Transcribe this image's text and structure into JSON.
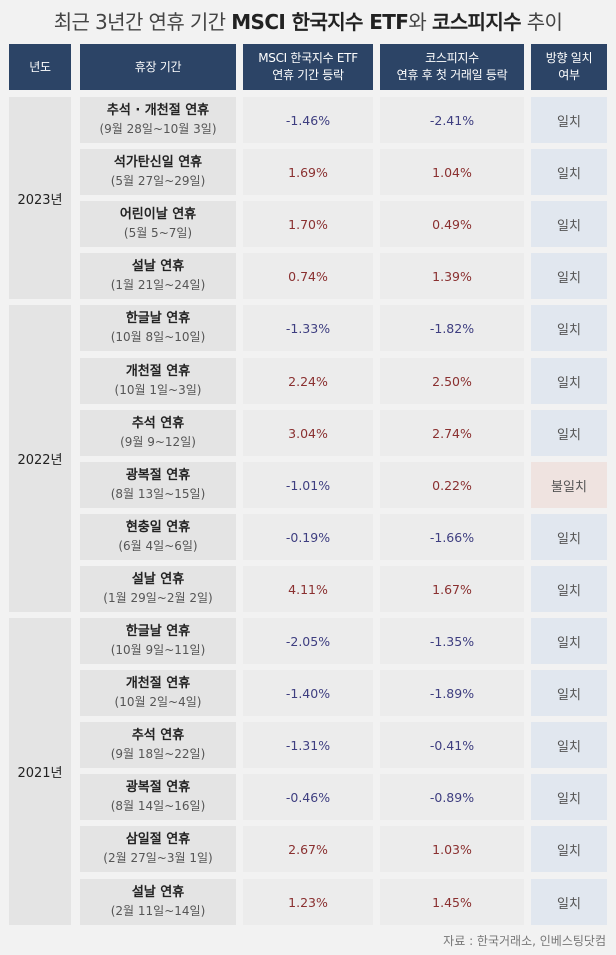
{
  "title": {
    "part1": "최근 3년간 연휴 기간 ",
    "part2": "MSCI 한국지수 ETF",
    "part3": "와 ",
    "part4": "코스피지수",
    "part5": " 추이"
  },
  "headers": {
    "year": "년도",
    "holiday": "휴장 기간",
    "msci_line1": "MSCI 한국지수 ETF",
    "msci_line2": "연휴 기간 등락",
    "kospi_line1": "코스피지수",
    "kospi_line2": "연휴 후 첫 거래일 등락",
    "match_line1": "방향 일치",
    "match_line2": "여부"
  },
  "chart_data": {
    "type": "table",
    "groups": [
      {
        "year": "2023년",
        "rows": [
          {
            "name": "추석 · 개천절 연휴",
            "dates": "(9월 28일~10월 3일)",
            "msci": "-1.46%",
            "kospi": "-2.41%",
            "match": "일치"
          },
          {
            "name": "석가탄신일 연휴",
            "dates": "(5월 27일~29일)",
            "msci": "1.69%",
            "kospi": "1.04%",
            "match": "일치"
          },
          {
            "name": "어린이날 연휴",
            "dates": "(5월 5~7일)",
            "msci": "1.70%",
            "kospi": "0.49%",
            "match": "일치"
          },
          {
            "name": "설날 연휴",
            "dates": "(1월 21일~24일)",
            "msci": "0.74%",
            "kospi": "1.39%",
            "match": "일치"
          }
        ]
      },
      {
        "year": "2022년",
        "rows": [
          {
            "name": "한글날 연휴",
            "dates": "(10월 8일~10일)",
            "msci": "-1.33%",
            "kospi": "-1.82%",
            "match": "일치"
          },
          {
            "name": "개천절 연휴",
            "dates": "(10월 1일~3일)",
            "msci": "2.24%",
            "kospi": "2.50%",
            "match": "일치"
          },
          {
            "name": "추석 연휴",
            "dates": "(9월 9~12일)",
            "msci": "3.04%",
            "kospi": "2.74%",
            "match": "일치"
          },
          {
            "name": "광복절 연휴",
            "dates": "(8월 13일~15일)",
            "msci": "-1.01%",
            "kospi": "0.22%",
            "match": "불일치"
          },
          {
            "name": "현충일 연휴",
            "dates": "(6월 4일~6일)",
            "msci": "-0.19%",
            "kospi": "-1.66%",
            "match": "일치"
          },
          {
            "name": "설날 연휴",
            "dates": "(1월 29일~2월 2일)",
            "msci": "4.11%",
            "kospi": "1.67%",
            "match": "일치"
          }
        ]
      },
      {
        "year": "2021년",
        "rows": [
          {
            "name": "한글날 연휴",
            "dates": "(10월 9일~11일)",
            "msci": "-2.05%",
            "kospi": "-1.35%",
            "match": "일치"
          },
          {
            "name": "개천절 연휴",
            "dates": "(10월 2일~4일)",
            "msci": "-1.40%",
            "kospi": "-1.89%",
            "match": "일치"
          },
          {
            "name": "추석 연휴",
            "dates": "(9월 18일~22일)",
            "msci": "-1.31%",
            "kospi": "-0.41%",
            "match": "일치"
          },
          {
            "name": "광복절 연휴",
            "dates": "(8월 14일~16일)",
            "msci": "-0.46%",
            "kospi": "-0.89%",
            "match": "일치"
          },
          {
            "name": "삼일절 연휴",
            "dates": "(2월 27일~3월 1일)",
            "msci": "2.67%",
            "kospi": "1.03%",
            "match": "일치"
          },
          {
            "name": "설날 연휴",
            "dates": "(2월 11일~14일)",
            "msci": "1.23%",
            "kospi": "1.45%",
            "match": "일치"
          }
        ]
      }
    ]
  },
  "colors": {
    "header_bg": "#2c4466",
    "positive": "#8a3030",
    "negative": "#3e3e80",
    "match_bg": "#e1e7ef",
    "mismatch_bg": "#efe3e0"
  },
  "source": "자료 : 한국거래소, 인베스팅닷컴"
}
